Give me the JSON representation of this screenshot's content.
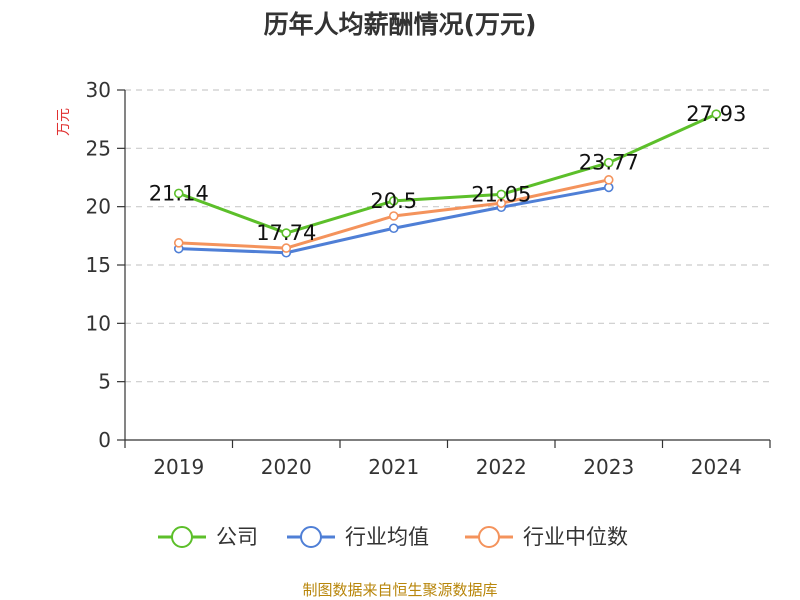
{
  "chart_data": {
    "type": "line",
    "title": "历年人均薪酬情况(万元)",
    "ylabel": "万元",
    "xlabel": "",
    "categories": [
      "2019",
      "2020",
      "2021",
      "2022",
      "2023",
      "2024"
    ],
    "ylim": [
      0,
      30
    ],
    "yticks": [
      0,
      5,
      10,
      15,
      20,
      25,
      30
    ],
    "grid": true,
    "legend_position": "bottom",
    "series": [
      {
        "name": "公司",
        "color": "#5cbf2a",
        "values": [
          21.14,
          17.74,
          20.5,
          21.05,
          23.77,
          27.93
        ],
        "labels": [
          "21.14",
          "17.74",
          "20.5",
          "21.05",
          "23.77",
          "27.93"
        ]
      },
      {
        "name": "行业均值",
        "color": "#4f7fd6",
        "values": [
          16.4,
          16.05,
          18.15,
          19.95,
          21.65,
          null
        ]
      },
      {
        "name": "行业中位数",
        "color": "#f4935c",
        "values": [
          16.9,
          16.45,
          19.2,
          20.3,
          22.3,
          null
        ]
      }
    ]
  },
  "source": "制图数据来自恒生聚源数据库"
}
